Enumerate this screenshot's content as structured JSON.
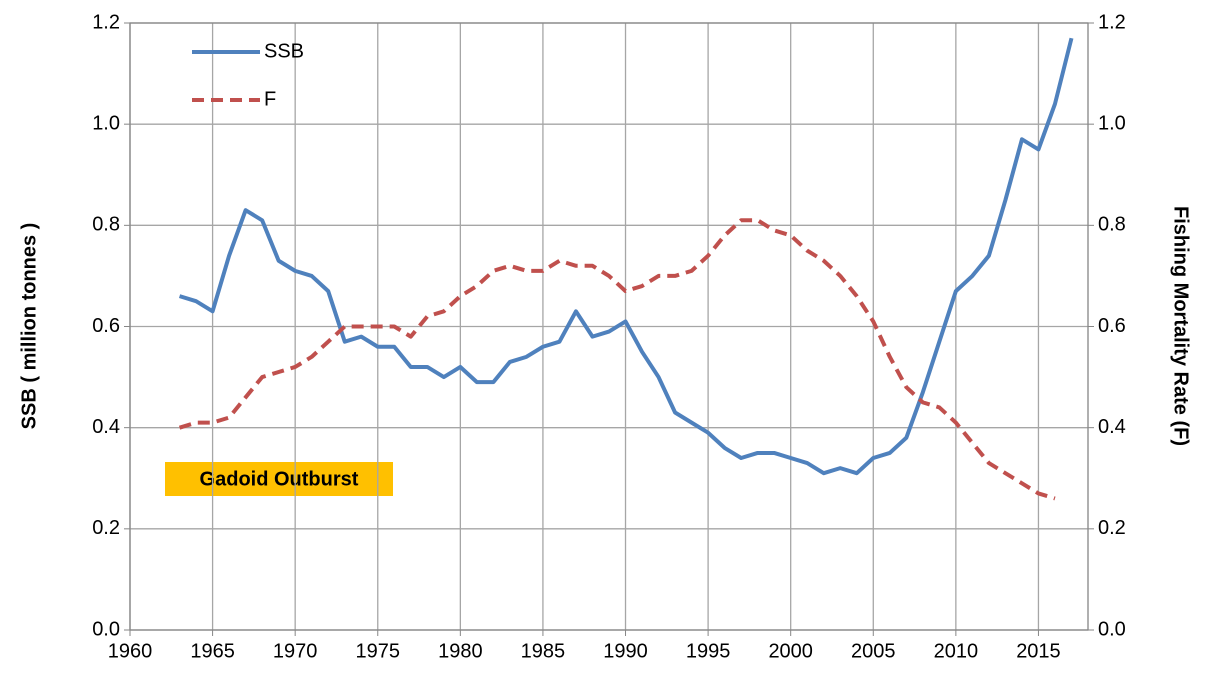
{
  "chart_data": {
    "type": "line",
    "x": [
      1963,
      1964,
      1965,
      1966,
      1967,
      1968,
      1969,
      1970,
      1971,
      1972,
      1973,
      1974,
      1975,
      1976,
      1977,
      1978,
      1979,
      1980,
      1981,
      1982,
      1983,
      1984,
      1985,
      1986,
      1987,
      1988,
      1989,
      1990,
      1991,
      1992,
      1993,
      1994,
      1995,
      1996,
      1997,
      1998,
      1999,
      2000,
      2001,
      2002,
      2003,
      2004,
      2005,
      2006,
      2007,
      2008,
      2009,
      2010,
      2011,
      2012,
      2013,
      2014,
      2015,
      2016,
      2017
    ],
    "series": [
      {
        "name": "SSB",
        "color": "#4f81bd",
        "linestyle": "solid",
        "values": [
          0.66,
          0.65,
          0.63,
          0.74,
          0.83,
          0.81,
          0.73,
          0.71,
          0.7,
          0.67,
          0.57,
          0.58,
          0.56,
          0.56,
          0.52,
          0.52,
          0.5,
          0.52,
          0.49,
          0.49,
          0.53,
          0.54,
          0.56,
          0.57,
          0.63,
          0.58,
          0.59,
          0.61,
          0.55,
          0.5,
          0.43,
          0.41,
          0.39,
          0.36,
          0.34,
          0.35,
          0.35,
          0.34,
          0.33,
          0.31,
          0.32,
          0.31,
          0.34,
          0.35,
          0.38,
          0.47,
          0.57,
          0.67,
          0.7,
          0.74,
          0.85,
          0.97,
          0.95,
          1.04,
          1.17
        ]
      },
      {
        "name": "F",
        "color": "#c0504d",
        "linestyle": "dashed",
        "axis": "y2",
        "values": [
          0.4,
          0.41,
          0.41,
          0.42,
          0.46,
          0.5,
          0.51,
          0.52,
          0.54,
          0.57,
          0.6,
          0.6,
          0.6,
          0.6,
          0.58,
          0.62,
          0.63,
          0.66,
          0.68,
          0.71,
          0.72,
          0.71,
          0.71,
          0.73,
          0.72,
          0.72,
          0.7,
          0.67,
          0.68,
          0.7,
          0.7,
          0.71,
          0.74,
          0.78,
          0.81,
          0.81,
          0.79,
          0.78,
          0.75,
          0.73,
          0.7,
          0.66,
          0.61,
          0.54,
          0.48,
          0.45,
          0.44,
          0.41,
          0.37,
          0.33,
          0.31,
          0.29,
          0.27,
          0.26,
          null
        ]
      }
    ],
    "xlim": [
      1960,
      2018
    ],
    "xticks": [
      1960,
      1965,
      1970,
      1975,
      1980,
      1985,
      1990,
      1995,
      2000,
      2005,
      2010,
      2015
    ],
    "ylim": [
      0,
      1.2
    ],
    "yticks": [
      {
        "value": 0,
        "label": "0.0"
      },
      {
        "value": 0.2,
        "label": "0.2"
      },
      {
        "value": 0.4,
        "label": "0.4"
      },
      {
        "value": 0.6,
        "label": "0.6"
      },
      {
        "value": 0.8,
        "label": "0.8"
      },
      {
        "value": 1,
        "label": "1.0"
      },
      {
        "value": 1.2,
        "label": "1.2"
      }
    ],
    "y2lim": [
      0,
      1.2
    ],
    "y2ticks": [
      {
        "value": 0,
        "label": "0.0"
      },
      {
        "value": 0.2,
        "label": "0.2"
      },
      {
        "value": 0.4,
        "label": "0.4"
      },
      {
        "value": 0.6,
        "label": "0.6"
      },
      {
        "value": 0.8,
        "label": "0.8"
      },
      {
        "value": 1,
        "label": "1.0"
      },
      {
        "value": 1.2,
        "label": "1.2"
      }
    ],
    "ylabel": "SSB ( million tonnes )",
    "y2label": "Fishing Mortality Rate (F)",
    "annotation": "Gadoid Outburst",
    "grid": true,
    "legend": "upper left"
  }
}
